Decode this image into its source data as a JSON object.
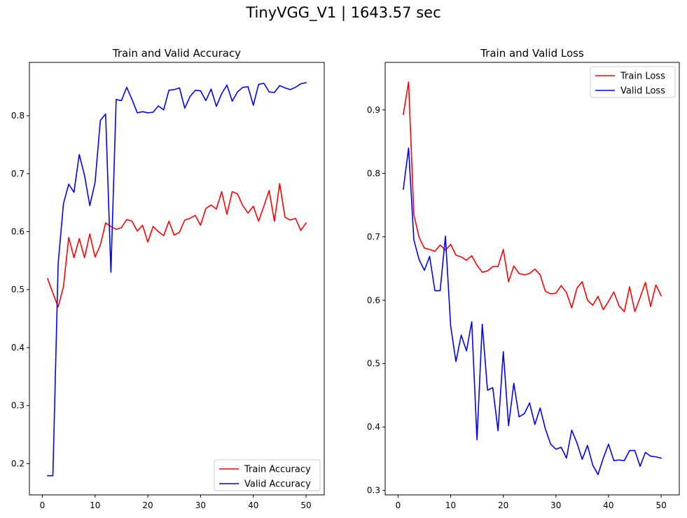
{
  "figure": {
    "title": "TinyVGG_V1 | 1643.57 sec"
  },
  "chart_data": [
    {
      "type": "line",
      "title": "Train and Valid Accuracy",
      "xlabel": "",
      "ylabel": "",
      "xlim": [
        -2.45,
        53.45
      ],
      "ylim": [
        0.146,
        0.892
      ],
      "xticks": [
        0,
        10,
        20,
        30,
        40,
        50
      ],
      "yticks": [
        0.2,
        0.3,
        0.4,
        0.5,
        0.6,
        0.7,
        0.8
      ],
      "ytick_labels": [
        "0.2",
        "0.3",
        "0.4",
        "0.5",
        "0.6",
        "0.7",
        "0.8"
      ],
      "grid": false,
      "legend": "lower-right",
      "x": [
        1,
        2,
        3,
        4,
        5,
        6,
        7,
        8,
        9,
        10,
        11,
        12,
        13,
        14,
        15,
        16,
        17,
        18,
        19,
        20,
        21,
        22,
        23,
        24,
        25,
        26,
        27,
        28,
        29,
        30,
        31,
        32,
        33,
        34,
        35,
        36,
        37,
        38,
        39,
        40,
        41,
        42,
        43,
        44,
        45,
        46,
        47,
        48,
        49,
        50
      ],
      "series": [
        {
          "name": "Train Accuracy",
          "color": "#ff0000",
          "values": [
            0.519,
            0.494,
            0.47,
            0.505,
            0.59,
            0.555,
            0.588,
            0.555,
            0.596,
            0.556,
            0.577,
            0.615,
            0.609,
            0.604,
            0.607,
            0.621,
            0.618,
            0.601,
            0.611,
            0.582,
            0.609,
            0.6,
            0.593,
            0.618,
            0.594,
            0.599,
            0.62,
            0.623,
            0.628,
            0.611,
            0.64,
            0.646,
            0.639,
            0.669,
            0.63,
            0.669,
            0.665,
            0.645,
            0.632,
            0.644,
            0.618,
            0.644,
            0.671,
            0.618,
            0.683,
            0.625,
            0.62,
            0.623,
            0.602,
            0.615
          ]
        },
        {
          "name": "Valid Accuracy",
          "color": "#0000ff",
          "values": [
            0.179,
            0.179,
            0.545,
            0.648,
            0.682,
            0.668,
            0.733,
            0.697,
            0.645,
            0.685,
            0.792,
            0.803,
            0.53,
            0.828,
            0.826,
            0.849,
            0.828,
            0.805,
            0.807,
            0.805,
            0.806,
            0.817,
            0.81,
            0.844,
            0.845,
            0.848,
            0.813,
            0.833,
            0.844,
            0.843,
            0.826,
            0.846,
            0.816,
            0.838,
            0.853,
            0.825,
            0.841,
            0.849,
            0.85,
            0.818,
            0.854,
            0.856,
            0.841,
            0.84,
            0.852,
            0.848,
            0.845,
            0.849,
            0.855,
            0.857
          ]
        }
      ]
    },
    {
      "type": "line",
      "title": "Train and Valid Loss",
      "xlabel": "",
      "ylabel": "",
      "xlim": [
        -2.45,
        53.45
      ],
      "ylim": [
        0.293,
        0.975
      ],
      "xticks": [
        0,
        10,
        20,
        30,
        40,
        50
      ],
      "yticks": [
        0.3,
        0.4,
        0.5,
        0.6,
        0.7,
        0.8,
        0.9
      ],
      "ytick_labels": [
        "0.3",
        "0.4",
        "0.5",
        "0.6",
        "0.7",
        "0.8",
        "0.9"
      ],
      "grid": false,
      "legend": "top-right",
      "x": [
        1,
        2,
        3,
        4,
        5,
        6,
        7,
        8,
        9,
        10,
        11,
        12,
        13,
        14,
        15,
        16,
        17,
        18,
        19,
        20,
        21,
        22,
        23,
        24,
        25,
        26,
        27,
        28,
        29,
        30,
        31,
        32,
        33,
        34,
        35,
        36,
        37,
        38,
        39,
        40,
        41,
        42,
        43,
        44,
        45,
        46,
        47,
        48,
        49,
        50
      ],
      "series": [
        {
          "name": "Train Loss",
          "color": "#ff0000",
          "values": [
            0.893,
            0.944,
            0.735,
            0.699,
            0.682,
            0.68,
            0.677,
            0.687,
            0.679,
            0.688,
            0.671,
            0.668,
            0.663,
            0.67,
            0.655,
            0.644,
            0.646,
            0.653,
            0.653,
            0.68,
            0.629,
            0.654,
            0.642,
            0.64,
            0.642,
            0.649,
            0.64,
            0.614,
            0.61,
            0.611,
            0.623,
            0.612,
            0.588,
            0.619,
            0.629,
            0.6,
            0.592,
            0.606,
            0.585,
            0.598,
            0.613,
            0.591,
            0.582,
            0.621,
            0.582,
            0.604,
            0.628,
            0.59,
            0.624,
            0.607
          ]
        },
        {
          "name": "Valid Loss",
          "color": "#0000ff",
          "values": [
            0.775,
            0.84,
            0.695,
            0.664,
            0.647,
            0.669,
            0.615,
            0.615,
            0.701,
            0.559,
            0.503,
            0.545,
            0.52,
            0.566,
            0.38,
            0.562,
            0.458,
            0.462,
            0.394,
            0.519,
            0.402,
            0.469,
            0.416,
            0.421,
            0.438,
            0.404,
            0.43,
            0.397,
            0.373,
            0.365,
            0.368,
            0.351,
            0.395,
            0.375,
            0.349,
            0.371,
            0.34,
            0.325,
            0.351,
            0.373,
            0.347,
            0.348,
            0.347,
            0.363,
            0.363,
            0.338,
            0.36,
            0.354,
            0.353,
            0.351
          ]
        }
      ]
    }
  ]
}
